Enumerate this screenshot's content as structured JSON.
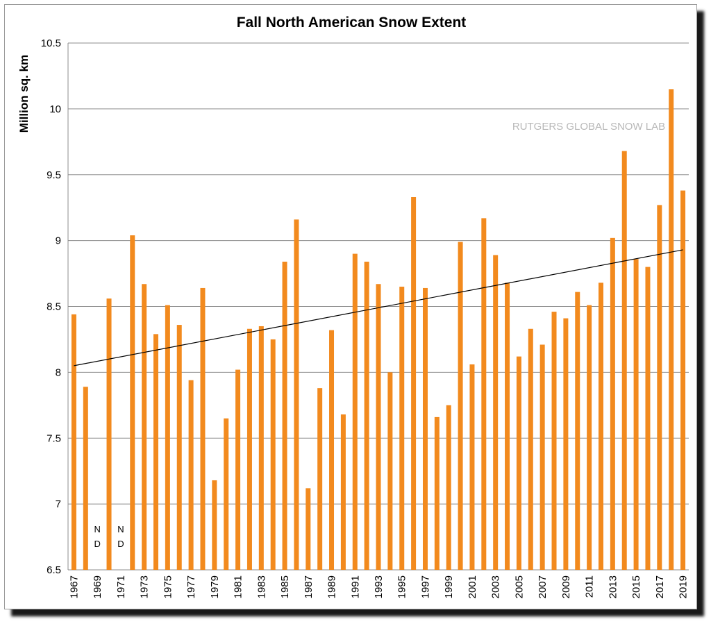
{
  "chart_data": {
    "type": "bar",
    "title": "Fall North American Snow Extent",
    "ylabel": "Million sq. km",
    "xlabel": "",
    "watermark": "RUTGERS GLOBAL SNOW LAB",
    "ylim": [
      6.5,
      10.5
    ],
    "yticks": [
      "6.5",
      "7",
      "7.5",
      "8",
      "8.5",
      "9",
      "9.5",
      "10",
      "10.5"
    ],
    "grid": true,
    "bar_color": "#f28a1e",
    "trend_color": "#000000",
    "categories": [
      "1967",
      "1968",
      "1969",
      "1970",
      "1971",
      "1972",
      "1973",
      "1974",
      "1975",
      "1976",
      "1977",
      "1978",
      "1979",
      "1980",
      "1981",
      "1982",
      "1983",
      "1984",
      "1985",
      "1986",
      "1987",
      "1988",
      "1989",
      "1990",
      "1991",
      "1992",
      "1993",
      "1994",
      "1995",
      "1996",
      "1997",
      "1998",
      "1999",
      "2000",
      "2001",
      "2002",
      "2003",
      "2004",
      "2005",
      "2006",
      "2007",
      "2008",
      "2009",
      "2010",
      "2011",
      "2012",
      "2013",
      "2014",
      "2015",
      "2016",
      "2017",
      "2018",
      "2019"
    ],
    "xtick_labels": [
      "1967",
      "1969",
      "1971",
      "1973",
      "1975",
      "1977",
      "1979",
      "1981",
      "1983",
      "1985",
      "1987",
      "1989",
      "1991",
      "1993",
      "1995",
      "1997",
      "1999",
      "2001",
      "2003",
      "2005",
      "2007",
      "2009",
      "2011",
      "2013",
      "2015",
      "2017",
      "2019"
    ],
    "values": [
      8.44,
      7.89,
      null,
      8.56,
      null,
      9.04,
      8.67,
      8.29,
      8.51,
      8.36,
      7.94,
      8.64,
      7.18,
      7.65,
      8.02,
      8.33,
      8.35,
      8.25,
      8.84,
      9.16,
      7.12,
      7.88,
      8.32,
      7.68,
      8.9,
      8.84,
      8.67,
      8.0,
      8.65,
      9.33,
      8.64,
      7.66,
      7.75,
      8.99,
      8.06,
      9.17,
      8.89,
      8.68,
      8.12,
      8.33,
      8.21,
      8.46,
      8.41,
      8.61,
      8.51,
      8.68,
      9.02,
      9.68,
      8.86,
      8.8,
      9.27,
      10.15,
      9.38
    ],
    "no_data_marker": [
      "N",
      "D"
    ],
    "trend": {
      "start": 8.05,
      "end": 8.93
    }
  }
}
